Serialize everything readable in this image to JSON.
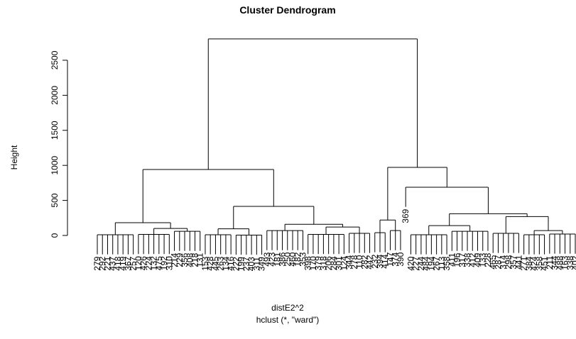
{
  "chart_data": {
    "type": "dendrogram",
    "title": "Cluster Dendrogram",
    "ylabel": "Height",
    "xlabel": "distE2^2",
    "subtitle": "hclust (*, \"ward\")",
    "ylim": [
      0,
      2800
    ],
    "yticks": [
      0,
      500,
      1000,
      1500,
      2000,
      2500
    ],
    "tree": {
      "height": 2804,
      "children": [
        {
          "height": 941,
          "children": [
            {
              "height": 182,
              "children": [
                {
                  "height": 10,
                  "children": [
                    "279",
                    "292",
                    "221",
                    "437",
                    "418",
                    "419",
                    "367",
                    "257"
                  ]
                },
                {
                  "height": 100,
                  "children": [
                    {
                      "height": 15,
                      "children": [
                        "120",
                        "426",
                        "224",
                        "132",
                        "475",
                        "192",
                        "310"
                      ]
                    },
                    {
                      "height": 60,
                      "children": [
                        "214",
                        "229",
                        "356",
                        "408",
                        "218",
                        "131"
                      ]
                    }
                  ]
                }
              ]
            },
            {
              "height": 415,
              "children": [
                {
                  "height": 95,
                  "children": [
                    {
                      "height": 10,
                      "children": [
                        "153",
                        "428",
                        "445",
                        "263",
                        "134",
                        "416"
                      ]
                    },
                    {
                      "height": 5,
                      "children": [
                        "222",
                        "199",
                        "237",
                        "403",
                        "311",
                        "349"
                      ]
                    }
                  ]
                },
                {
                  "height": 160,
                  "children": [
                    {
                      "height": 70,
                      "children": [
                        "493",
                        "423",
                        "181",
                        "386",
                        "250",
                        "460",
                        "182",
                        "353"
                      ]
                    },
                    {
                      "height": 120,
                      "children": [
                        {
                          "height": 15,
                          "children": [
                            "398",
                            "170",
                            "379",
                            "318",
                            "206",
                            "284",
                            "301",
                            "124"
                          ]
                        },
                        {
                          "height": 30,
                          "children": [
                            "344",
                            "278",
                            "110",
                            "282",
                            "442"
                          ]
                        }
                      ]
                    }
                  ]
                }
              ]
            }
          ]
        },
        {
          "height": 972,
          "children": [
            {
              "height": 220,
              "children": [
                {
                  "height": 40,
                  "children": [
                    "232",
                    "394",
                    "414"
                  ]
                },
                {
                  "height": 70,
                  "children": [
                    "147",
                    "374",
                    "390"
                  ]
                }
              ]
            },
            {
              "height": 688,
              "children": [
                "369",
                {
                  "height": 310,
                  "children": [
                    {
                      "height": 140,
                      "children": [
                        {
                          "height": 10,
                          "children": [
                            "420",
                            "227",
                            "244",
                            "484",
                            "194",
                            "267",
                            "113",
                            "358"
                          ]
                        },
                        {
                          "height": 60,
                          "children": [
                            "411",
                            "196",
                            "317",
                            "338",
                            "412",
                            "409",
                            "133",
                            "228"
                          ]
                        }
                      ]
                    },
                    {
                      "height": 270,
                      "children": [
                        {
                          "height": 30,
                          "children": [
                            "465",
                            "287",
                            "314",
                            "298",
                            "357",
                            "441"
                          ]
                        },
                        {
                          "height": 70,
                          "children": [
                            {
                              "height": 10,
                              "children": [
                                "271",
                                "384",
                                "424",
                                "358",
                                "451"
                              ]
                            },
                            {
                              "height": 20,
                              "children": [
                                "211",
                                "344",
                                "488",
                                "163",
                                "338",
                                "402"
                              ]
                            }
                          ]
                        }
                      ]
                    }
                  ]
                }
              ]
            }
          ]
        }
      ]
    }
  }
}
